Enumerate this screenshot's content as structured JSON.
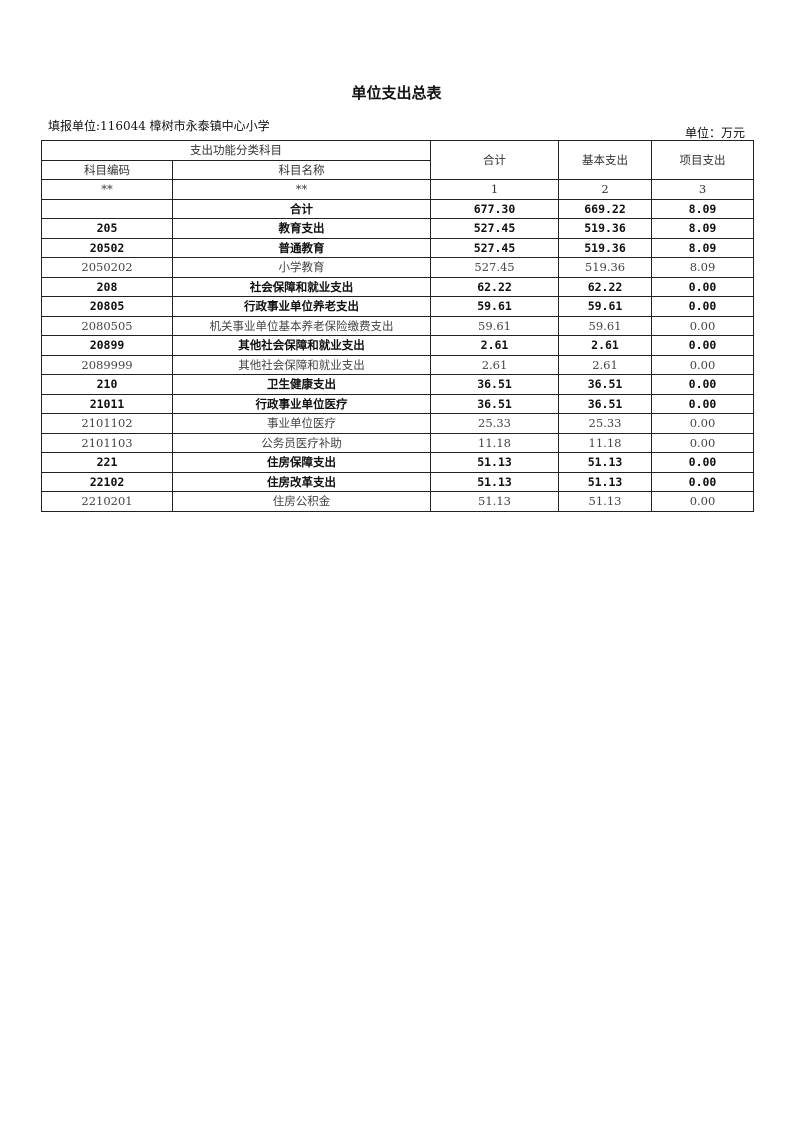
{
  "title": "单位支出总表",
  "filler": "填报单位:116044 樟树市永泰镇中心小学",
  "unit": "单位：万元",
  "header": {
    "group": "支出功能分类科目",
    "code": "科目编码",
    "name": "科目名称",
    "total": "合计",
    "basic": "基本支出",
    "project": "项目支出",
    "idx": [
      "**",
      "**",
      "1",
      "2",
      "3"
    ]
  },
  "rows": [
    {
      "code": "",
      "name": "合计",
      "total": "677.30",
      "basic": "669.22",
      "project": "8.09",
      "bold": true
    },
    {
      "code": "205",
      "name": "教育支出",
      "total": "527.45",
      "basic": "519.36",
      "project": "8.09",
      "bold": true
    },
    {
      "code": "20502",
      "name": "普通教育",
      "total": "527.45",
      "basic": "519.36",
      "project": "8.09",
      "bold": true
    },
    {
      "code": "2050202",
      "name": "小学教育",
      "total": "527.45",
      "basic": "519.36",
      "project": "8.09",
      "bold": false
    },
    {
      "code": "208",
      "name": "社会保障和就业支出",
      "total": "62.22",
      "basic": "62.22",
      "project": "0.00",
      "bold": true
    },
    {
      "code": "20805",
      "name": "行政事业单位养老支出",
      "total": "59.61",
      "basic": "59.61",
      "project": "0.00",
      "bold": true
    },
    {
      "code": "2080505",
      "name": "机关事业单位基本养老保险缴费支出",
      "total": "59.61",
      "basic": "59.61",
      "project": "0.00",
      "bold": false
    },
    {
      "code": "20899",
      "name": "其他社会保障和就业支出",
      "total": "2.61",
      "basic": "2.61",
      "project": "0.00",
      "bold": true
    },
    {
      "code": "2089999",
      "name": "其他社会保障和就业支出",
      "total": "2.61",
      "basic": "2.61",
      "project": "0.00",
      "bold": false
    },
    {
      "code": "210",
      "name": "卫生健康支出",
      "total": "36.51",
      "basic": "36.51",
      "project": "0.00",
      "bold": true
    },
    {
      "code": "21011",
      "name": "行政事业单位医疗",
      "total": "36.51",
      "basic": "36.51",
      "project": "0.00",
      "bold": true
    },
    {
      "code": "2101102",
      "name": "事业单位医疗",
      "total": "25.33",
      "basic": "25.33",
      "project": "0.00",
      "bold": false
    },
    {
      "code": "2101103",
      "name": "公务员医疗补助",
      "total": "11.18",
      "basic": "11.18",
      "project": "0.00",
      "bold": false
    },
    {
      "code": "221",
      "name": "住房保障支出",
      "total": "51.13",
      "basic": "51.13",
      "project": "0.00",
      "bold": true
    },
    {
      "code": "22102",
      "name": "住房改革支出",
      "total": "51.13",
      "basic": "51.13",
      "project": "0.00",
      "bold": true
    },
    {
      "code": "2210201",
      "name": "住房公积金",
      "total": "51.13",
      "basic": "51.13",
      "project": "0.00",
      "bold": false
    }
  ]
}
